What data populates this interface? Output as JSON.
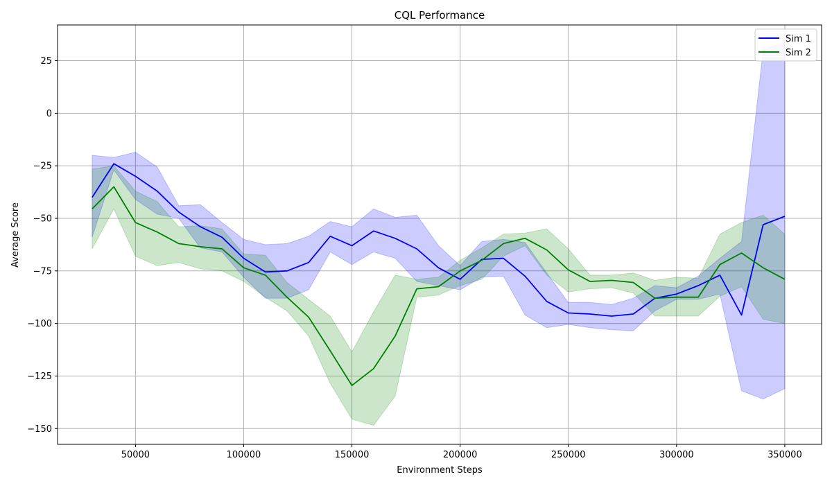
{
  "chart_data": {
    "type": "line",
    "title": "CQL Performance",
    "xlabel": "Environment Steps",
    "ylabel": "Average Score",
    "xlim": [
      14000,
      367000
    ],
    "ylim": [
      -157.5,
      42
    ],
    "xticks": [
      50000,
      100000,
      150000,
      200000,
      250000,
      300000,
      350000
    ],
    "xtick_labels": [
      "50000",
      "100000",
      "150000",
      "200000",
      "250000",
      "300000",
      "350000"
    ],
    "yticks": [
      -150,
      -125,
      -100,
      -75,
      -50,
      -25,
      0,
      25
    ],
    "ytick_labels": [
      "−150",
      "−125",
      "−100",
      "−75",
      "−50",
      "−25",
      "0",
      "25"
    ],
    "grid": true,
    "legend_position": "top-right",
    "x": [
      30000,
      40000,
      50000,
      60000,
      70000,
      80000,
      90000,
      100000,
      110000,
      120000,
      130000,
      140000,
      150000,
      160000,
      170000,
      180000,
      190000,
      200000,
      210000,
      220000,
      230000,
      240000,
      250000,
      260000,
      270000,
      280000,
      290000,
      300000,
      310000,
      320000,
      330000,
      340000,
      350000
    ],
    "series": [
      {
        "name": "Sim 1",
        "color": "#0000ff",
        "values": [
          -40,
          -24,
          -30,
          -37,
          -47,
          -54,
          -59,
          -69,
          -75.5,
          -75,
          -71,
          -58.5,
          -63,
          -56,
          -59.5,
          -64.5,
          -73.5,
          -79,
          -69.5,
          -69,
          -77.5,
          -89.5,
          -95,
          -95.5,
          -96.5,
          -95.5,
          -88,
          -86,
          -82,
          -77,
          -96,
          -53,
          -49
        ],
        "lower": [
          -59,
          -27,
          -41,
          -48,
          -50,
          -64,
          -66,
          -78,
          -88,
          -88,
          -84,
          -66,
          -72,
          -66,
          -69,
          -80,
          -82,
          -84,
          -78,
          -77.5,
          -96,
          -102,
          -100.5,
          -102,
          -103,
          -103.5,
          -94,
          -88.5,
          -88.5,
          -86,
          -132,
          -136,
          -131
        ],
        "upper": [
          -20,
          -21,
          -18.5,
          -25.5,
          -44,
          -43.5,
          -52,
          -60,
          -62.5,
          -62,
          -58.5,
          -51.5,
          -54,
          -45.5,
          -49.5,
          -48.5,
          -63,
          -72.5,
          -61,
          -60,
          -61.5,
          -76,
          -90,
          -90,
          -91,
          -88,
          -82,
          -83,
          -77.5,
          -69,
          -61,
          30,
          34
        ]
      },
      {
        "name": "Sim 2",
        "color": "#008000",
        "values": [
          -45.5,
          -35,
          -52,
          -56.5,
          -62,
          -63.5,
          -64.5,
          -73.5,
          -77,
          -87.5,
          -97,
          -113,
          -129.5,
          -121.5,
          -106,
          -83.5,
          -82.5,
          -75,
          -70,
          -62,
          -59.5,
          -65,
          -74.5,
          -80,
          -79.5,
          -80.5,
          -88,
          -87.5,
          -87.5,
          -72,
          -66.5,
          -73.5,
          -79
        ],
        "lower": [
          -64.5,
          -45.5,
          -68,
          -72.5,
          -71,
          -74,
          -75,
          -80,
          -87.5,
          -94,
          -106,
          -128.5,
          -145.5,
          -148.5,
          -134.5,
          -87.5,
          -86.5,
          -82,
          -79,
          -68,
          -63,
          -77,
          -85,
          -83.5,
          -83,
          -85.5,
          -96.5,
          -96.5,
          -96.5,
          -87,
          -82.5,
          -98,
          -100
        ],
        "upper": [
          -26.5,
          -25,
          -37,
          -42,
          -54,
          -53.5,
          -55,
          -67,
          -67.5,
          -80.5,
          -88.5,
          -96.5,
          -113.5,
          -94.5,
          -77,
          -79,
          -78,
          -70,
          -64,
          -57.5,
          -57,
          -55,
          -64.5,
          -77,
          -77,
          -76,
          -79.5,
          -78,
          -78.5,
          -57.5,
          -52,
          -48.5,
          -57.5
        ]
      }
    ]
  }
}
